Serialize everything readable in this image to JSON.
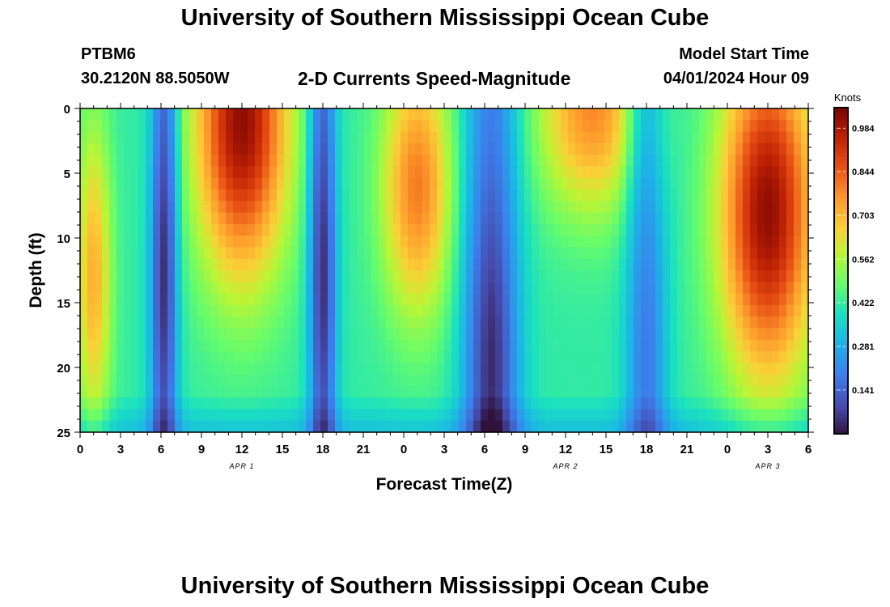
{
  "header": {
    "title": "University of Southern Mississippi Ocean Cube",
    "station": "PTBM6",
    "coords": "30.2120N  88.5050W",
    "subtitle": "2-D Currents Speed-Magnitude",
    "model_label": "Model Start Time",
    "model_time": "04/01/2024 Hour 09"
  },
  "footer": {
    "title": "University of Southern Mississippi Ocean Cube"
  },
  "chart_data": {
    "type": "heatmap",
    "title": "2-D Currents Speed-Magnitude",
    "xlabel": "Forecast Time(Z)",
    "ylabel": "Depth (ft)",
    "x_unit": "hours since 04/01/2024 00Z",
    "xlim": [
      0,
      54
    ],
    "ylim": [
      0,
      25
    ],
    "y_inverted": true,
    "x_ticks": [
      {
        "hour": 0,
        "label": "0"
      },
      {
        "hour": 3,
        "label": "3"
      },
      {
        "hour": 6,
        "label": "6"
      },
      {
        "hour": 9,
        "label": "9"
      },
      {
        "hour": 12,
        "label": "12"
      },
      {
        "hour": 15,
        "label": "15"
      },
      {
        "hour": 18,
        "label": "18"
      },
      {
        "hour": 21,
        "label": "21"
      },
      {
        "hour": 24,
        "label": "0"
      },
      {
        "hour": 27,
        "label": "3"
      },
      {
        "hour": 30,
        "label": "6"
      },
      {
        "hour": 33,
        "label": "9"
      },
      {
        "hour": 36,
        "label": "12"
      },
      {
        "hour": 39,
        "label": "15"
      },
      {
        "hour": 42,
        "label": "18"
      },
      {
        "hour": 45,
        "label": "21"
      },
      {
        "hour": 48,
        "label": "0"
      },
      {
        "hour": 51,
        "label": "3"
      },
      {
        "hour": 54,
        "label": "6"
      }
    ],
    "y_ticks": [
      0,
      5,
      10,
      15,
      20,
      25
    ],
    "date_labels": [
      {
        "hour": 12,
        "label": "APR 1"
      },
      {
        "hour": 36,
        "label": "APR 2"
      },
      {
        "hour": 51,
        "label": "APR 3"
      }
    ],
    "colorbar": {
      "title": "Knots",
      "min": 0.0,
      "max": 1.05,
      "ticks": [
        0.141,
        0.281,
        0.422,
        0.562,
        0.703,
        0.844,
        0.984
      ]
    },
    "speed_peaks_knots": [
      {
        "hour_center": 1.0,
        "hour_width": 1.3,
        "peak": 0.72,
        "peak_depth_ft": 13,
        "depth_spread_ft": 12
      },
      {
        "hour_center": 12.0,
        "hour_width": 3.4,
        "peak": 1.02,
        "peak_depth_ft": 1,
        "depth_spread_ft": 12
      },
      {
        "hour_center": 25.0,
        "hour_width": 2.6,
        "peak": 0.8,
        "peak_depth_ft": 6,
        "depth_spread_ft": 10
      },
      {
        "hour_center": 38.0,
        "hour_width": 4.0,
        "peak": 0.78,
        "peak_depth_ft": 0,
        "depth_spread_ft": 8
      },
      {
        "hour_center": 51.0,
        "hour_width": 3.5,
        "peak": 1.02,
        "peak_depth_ft": 8,
        "depth_spread_ft": 13
      }
    ],
    "speed_minima_knots": [
      {
        "hour_center": 6.2,
        "hour_width": 1.0,
        "min": 0.05,
        "depth_ft": 13
      },
      {
        "hour_center": 18.0,
        "hour_width": 1.0,
        "min": 0.05,
        "depth_ft": 13
      },
      {
        "hour_center": 30.5,
        "hour_width": 2.0,
        "min": 0.04,
        "depth_ft": 20
      },
      {
        "hour_center": 42.0,
        "hour_width": 1.5,
        "min": 0.18,
        "depth_ft": 20
      }
    ]
  }
}
